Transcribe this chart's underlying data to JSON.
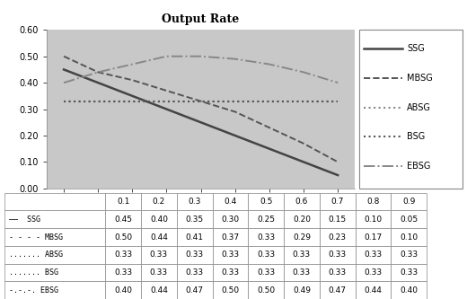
{
  "title": "Output Rate",
  "x": [
    0.1,
    0.2,
    0.3,
    0.4,
    0.5,
    0.6,
    0.7,
    0.8,
    0.9
  ],
  "series": {
    "SSG": [
      0.45,
      0.4,
      0.35,
      0.3,
      0.25,
      0.2,
      0.15,
      0.1,
      0.05
    ],
    "MBSG": [
      0.5,
      0.44,
      0.41,
      0.37,
      0.33,
      0.29,
      0.23,
      0.17,
      0.1
    ],
    "ABSG": [
      0.33,
      0.33,
      0.33,
      0.33,
      0.33,
      0.33,
      0.33,
      0.33,
      0.33
    ],
    "BSG": [
      0.33,
      0.33,
      0.33,
      0.33,
      0.33,
      0.33,
      0.33,
      0.33,
      0.33
    ],
    "EBSG": [
      0.4,
      0.44,
      0.47,
      0.5,
      0.5,
      0.49,
      0.47,
      0.44,
      0.4
    ]
  },
  "line_styles": {
    "SSG": {
      "linestyle": "-",
      "color": "#444444",
      "linewidth": 1.8
    },
    "MBSG": {
      "linestyle": "--",
      "color": "#555555",
      "linewidth": 1.4
    },
    "ABSG": {
      "linestyle": ":",
      "color": "#888888",
      "linewidth": 1.5
    },
    "BSG": {
      "linestyle": ":",
      "color": "#555555",
      "linewidth": 1.5
    },
    "EBSG": {
      "linestyle": "-.",
      "color": "#888888",
      "linewidth": 1.4
    }
  },
  "ylim": [
    0.0,
    0.6
  ],
  "yticks": [
    0.0,
    0.1,
    0.2,
    0.3,
    0.4,
    0.5,
    0.6
  ],
  "xlim": [
    0.05,
    0.95
  ],
  "xticks": [
    0.1,
    0.2,
    0.3,
    0.4,
    0.5,
    0.6,
    0.7,
    0.8,
    0.9
  ],
  "plot_bg": "#c8c8c8",
  "fig_bg": "#ffffff",
  "legend_labels": [
    "SSG",
    "MBSG",
    "ABSG",
    "BSG",
    "EBSG"
  ],
  "row_labels": [
    "——  SSG",
    "- - - - MBSG",
    "....... ABSG",
    "....... BSG",
    "-.-.-. EBSG"
  ],
  "col_labels": [
    "0.1",
    "0.2",
    "0.3",
    "0.4",
    "0.5",
    "0.6",
    "0.7",
    "0.8",
    "0.9"
  ]
}
